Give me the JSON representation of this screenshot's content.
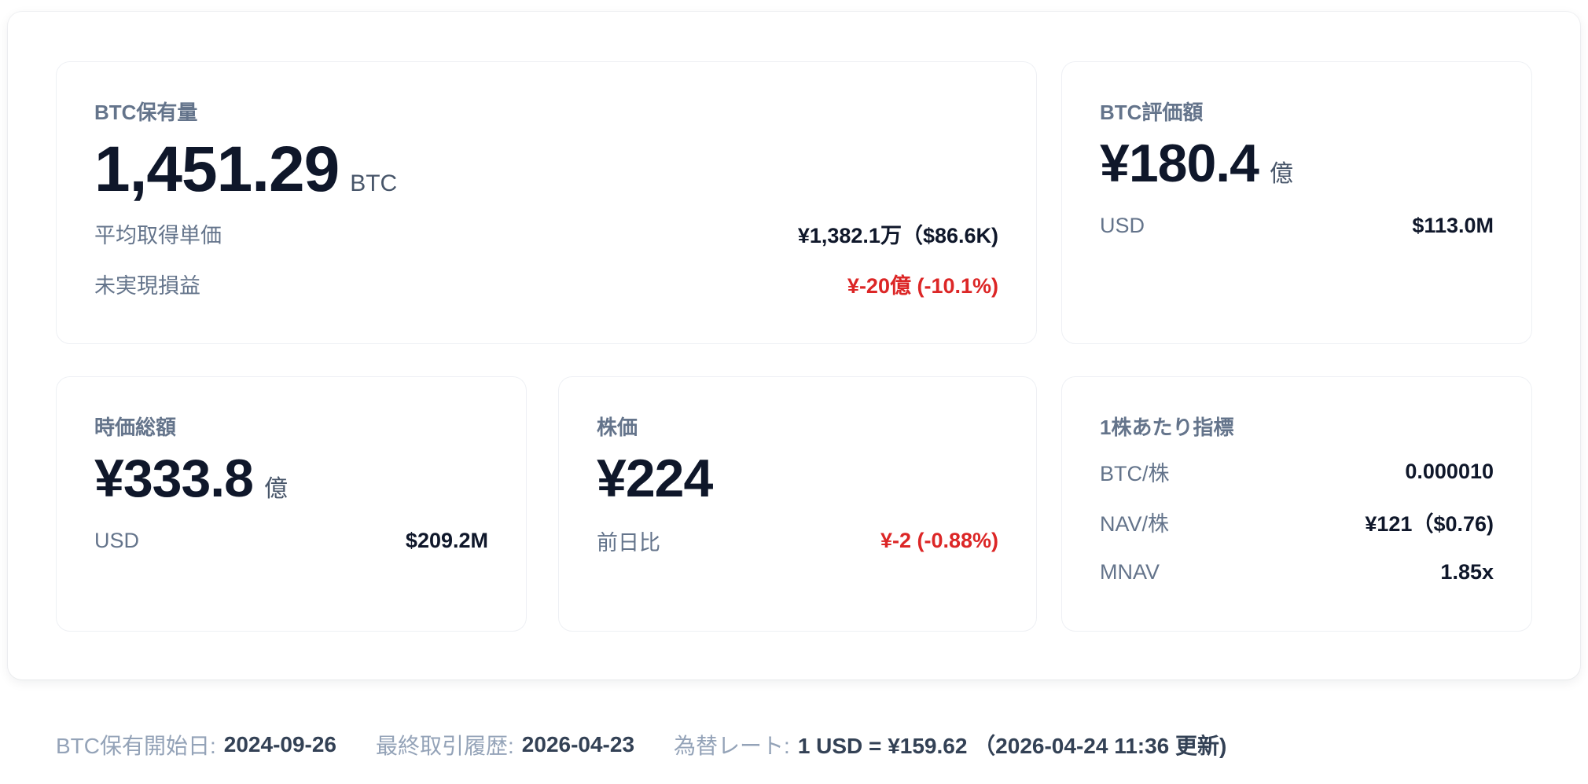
{
  "holdings": {
    "label": "BTC保有量",
    "value": "1,451.29",
    "unit": "BTC",
    "rows": [
      {
        "k": "平均取得単価",
        "v": "¥1,382.1万（$86.6K)"
      },
      {
        "k": "未実現損益",
        "v": "¥-20億 (-10.1%)"
      }
    ]
  },
  "valuation": {
    "label": "BTC評価額",
    "value": "¥180.4",
    "unit": "億",
    "rows": [
      {
        "k": "USD",
        "v": "$113.0M"
      }
    ]
  },
  "market_cap": {
    "label": "時価総額",
    "value": "¥333.8",
    "unit": "億",
    "rows": [
      {
        "k": "USD",
        "v": "$209.2M"
      }
    ]
  },
  "stock_price": {
    "label": "株価",
    "value": "¥224",
    "rows": [
      {
        "k": "前日比",
        "v": "¥-2 (-0.88%)"
      }
    ]
  },
  "per_share": {
    "label": "1株あたり指標",
    "rows": [
      {
        "k": "BTC/株",
        "v": "0.000010"
      },
      {
        "k": "NAV/株",
        "v": "¥121（$0.76)"
      },
      {
        "k": "MNAV",
        "v": "1.85x"
      }
    ]
  },
  "footer": {
    "start_label": "BTC保有開始日:",
    "start_value": "2024-09-26",
    "last_label": "最終取引履歴:",
    "last_value": "2026-04-23",
    "fx_label": "為替レート:",
    "fx_value": "1 USD = ¥159.62 （2026-04-24 11:36 更新)"
  },
  "colors": {
    "negative": "#dc2626",
    "label": "#64748b",
    "value": "#0f172a"
  }
}
